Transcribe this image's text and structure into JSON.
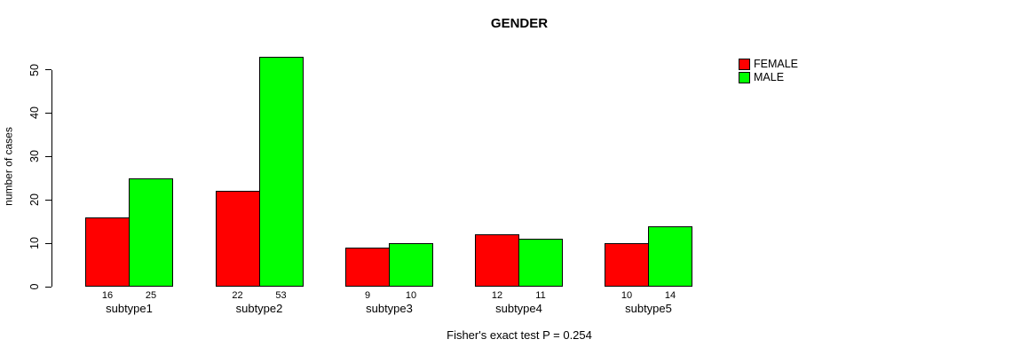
{
  "figure": {
    "title": "GENDER",
    "y_axis_label": "number of cases",
    "footnote": "Fisher's exact test P = 0.254"
  },
  "chart_data": {
    "type": "bar",
    "title": "GENDER",
    "xlabel": "",
    "ylabel": "number of cases",
    "categories": [
      "subtype1",
      "subtype2",
      "subtype3",
      "subtype4",
      "subtype5"
    ],
    "series": [
      {
        "name": "FEMALE",
        "color": "#ff0000",
        "values": [
          16,
          22,
          9,
          12,
          10
        ]
      },
      {
        "name": "MALE",
        "color": "#00ff00",
        "values": [
          25,
          53,
          10,
          11,
          14
        ]
      }
    ],
    "bar_value_labels_shown": true,
    "yticks": [
      0,
      10,
      20,
      30,
      40,
      50
    ],
    "ylim": [
      0,
      53
    ],
    "grid": false,
    "legend_position": "top-right",
    "annotation": "Fisher's exact test P = 0.254"
  }
}
